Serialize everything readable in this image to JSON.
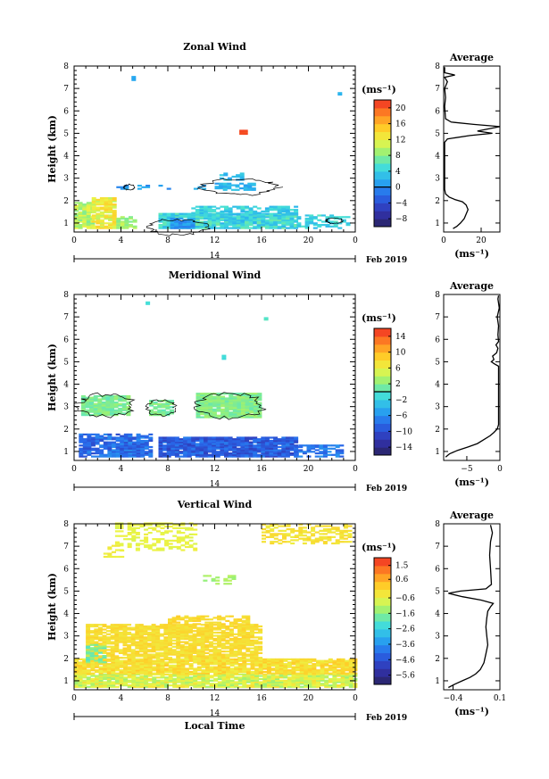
{
  "chart_data": [
    {
      "type": "heatmap",
      "title": "Zonal Wind",
      "ylabel": "Height (km)",
      "xlabel": "",
      "x_ticks": [
        "0",
        "4",
        "8",
        "12",
        "16",
        "20",
        "0"
      ],
      "xlim": [
        0,
        24
      ],
      "y_ticks": [
        "1",
        "2",
        "3",
        "4",
        "5",
        "6",
        "7",
        "8"
      ],
      "ylim": [
        0.6,
        8.0
      ],
      "date_marker": "14",
      "date_label": "Feb 2019",
      "colorbar": {
        "unit": "(ms⁻¹)",
        "ticks": [
          "−8",
          "−4",
          "0",
          "4",
          "8",
          "12",
          "16",
          "20"
        ],
        "min": -10,
        "max": 22,
        "zero_line": 0
      },
      "profile": {
        "title": "Average",
        "xlabel": "(ms⁻¹)",
        "x_ticks": [
          "0",
          "20"
        ],
        "xlim": [
          0,
          30
        ],
        "points": [
          [
            5,
            0.75
          ],
          [
            7,
            0.85
          ],
          [
            9,
            1.0
          ],
          [
            11,
            1.2
          ],
          [
            12,
            1.4
          ],
          [
            13,
            1.6
          ],
          [
            12,
            1.8
          ],
          [
            10,
            1.95
          ],
          [
            6,
            2.05
          ],
          [
            3,
            2.15
          ],
          [
            1,
            2.3
          ],
          [
            0.5,
            2.5
          ],
          [
            0.5,
            4.6
          ],
          [
            2,
            4.75
          ],
          [
            14,
            4.9
          ],
          [
            26,
            5.0
          ],
          [
            18,
            5.1
          ],
          [
            24,
            5.2
          ],
          [
            30,
            5.3
          ],
          [
            16,
            5.4
          ],
          [
            4,
            5.5
          ],
          [
            1,
            5.65
          ],
          [
            0.5,
            6.2
          ],
          [
            1,
            6.6
          ],
          [
            0.5,
            7.0
          ],
          [
            2,
            7.3
          ],
          [
            0.5,
            7.5
          ],
          [
            6,
            7.6
          ],
          [
            0.5,
            7.7
          ],
          [
            0.5,
            7.95
          ]
        ]
      }
    },
    {
      "type": "heatmap",
      "title": "Meridional Wind",
      "ylabel": "Height (km)",
      "xlabel": "",
      "x_ticks": [
        "0",
        "4",
        "8",
        "12",
        "16",
        "20",
        "0"
      ],
      "xlim": [
        0,
        24
      ],
      "y_ticks": [
        "1",
        "2",
        "3",
        "4",
        "5",
        "6",
        "7",
        "8"
      ],
      "ylim": [
        0.6,
        8.0
      ],
      "date_marker": "14",
      "date_label": "Feb 2019",
      "colorbar": {
        "unit": "(ms⁻¹)",
        "ticks": [
          "−14",
          "−10",
          "−6",
          "−2",
          "2",
          "6",
          "10",
          "14"
        ],
        "min": -16,
        "max": 16,
        "zero_line": 0
      },
      "profile": {
        "title": "Average",
        "xlabel": "(ms⁻¹)",
        "x_ticks": [
          "−5",
          "0"
        ],
        "xlim": [
          -8.5,
          0
        ],
        "points": [
          [
            -8.2,
            0.75
          ],
          [
            -7.6,
            0.9
          ],
          [
            -6.4,
            1.05
          ],
          [
            -4.8,
            1.2
          ],
          [
            -3.4,
            1.35
          ],
          [
            -2.3,
            1.55
          ],
          [
            -1.5,
            1.7
          ],
          [
            -0.9,
            1.85
          ],
          [
            -0.4,
            2.0
          ],
          [
            -0.2,
            2.2
          ],
          [
            -0.2,
            4.8
          ],
          [
            -0.8,
            4.9
          ],
          [
            -1.3,
            5.0
          ],
          [
            -0.9,
            5.1
          ],
          [
            -1.1,
            5.25
          ],
          [
            -0.5,
            5.4
          ],
          [
            -0.3,
            5.6
          ],
          [
            -0.6,
            5.75
          ],
          [
            -0.2,
            5.9
          ],
          [
            -0.3,
            6.2
          ],
          [
            -0.2,
            6.6
          ],
          [
            -0.4,
            7.0
          ],
          [
            -0.1,
            7.4
          ],
          [
            -0.3,
            7.8
          ],
          [
            -0.2,
            7.95
          ]
        ]
      }
    },
    {
      "type": "heatmap",
      "title": "Vertical Wind",
      "ylabel": "Height (km)",
      "xlabel": "Local Time",
      "x_ticks": [
        "0",
        "4",
        "8",
        "12",
        "16",
        "20",
        "0"
      ],
      "xlim": [
        0,
        24
      ],
      "y_ticks": [
        "1",
        "2",
        "3",
        "4",
        "5",
        "6",
        "7",
        "8"
      ],
      "ylim": [
        0.6,
        8.0
      ],
      "date_marker": "14",
      "date_label": "Feb 2019",
      "colorbar": {
        "unit": "(ms⁻¹)",
        "ticks": [
          "−5.6",
          "−4.6",
          "−3.6",
          "−2.6",
          "−1.6",
          "−0.6",
          "0.6",
          "1.5"
        ],
        "min": -6.2,
        "max": 2.0,
        "zero_line": null
      },
      "profile": {
        "title": "Average",
        "xlabel": "(ms⁻¹)",
        "x_ticks": [
          "−0.4",
          "0.1"
        ],
        "xlim": [
          -0.5,
          0.1
        ],
        "points": [
          [
            -0.45,
            0.7
          ],
          [
            -0.38,
            0.85
          ],
          [
            -0.3,
            1.0
          ],
          [
            -0.22,
            1.15
          ],
          [
            -0.16,
            1.3
          ],
          [
            -0.11,
            1.5
          ],
          [
            -0.07,
            1.8
          ],
          [
            -0.05,
            2.2
          ],
          [
            -0.03,
            2.6
          ],
          [
            -0.04,
            3.0
          ],
          [
            -0.05,
            3.4
          ],
          [
            -0.04,
            3.8
          ],
          [
            -0.03,
            4.1
          ],
          [
            0.0,
            4.3
          ],
          [
            0.03,
            4.45
          ],
          [
            -0.1,
            4.6
          ],
          [
            -0.3,
            4.75
          ],
          [
            -0.45,
            4.9
          ],
          [
            -0.32,
            5.0
          ],
          [
            -0.05,
            5.1
          ],
          [
            0.01,
            5.3
          ],
          [
            0.0,
            6.0
          ],
          [
            -0.01,
            6.6
          ],
          [
            0.0,
            7.2
          ],
          [
            0.02,
            7.6
          ],
          [
            0.0,
            7.95
          ]
        ]
      }
    }
  ]
}
